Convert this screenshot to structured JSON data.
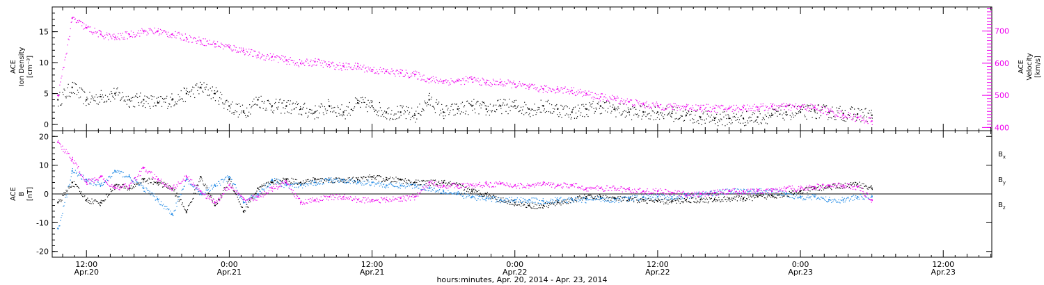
{
  "colors": {
    "black": "#000000",
    "magenta": "#ee00ee",
    "blue": "#1e88e5"
  },
  "x_ticks": [
    {
      "t": 0.5,
      "time": "12:00",
      "date": "Apr.20"
    },
    {
      "t": 1.0,
      "time": "0:00",
      "date": "Apr.21"
    },
    {
      "t": 1.5,
      "time": "12:00",
      "date": "Apr.21"
    },
    {
      "t": 2.0,
      "time": "0:00",
      "date": "Apr.22"
    },
    {
      "t": 2.5,
      "time": "12:00",
      "date": "Apr.22"
    },
    {
      "t": 3.0,
      "time": "0:00",
      "date": "Apr.23"
    },
    {
      "t": 3.5,
      "time": "12:00",
      "date": "Apr.23"
    }
  ],
  "x_title": "hours:minutes, Apr. 20, 2014 - Apr. 23, 2014",
  "chart_data": [
    {
      "type": "scatter",
      "panel": "top",
      "ylabel_left": [
        "ACE",
        "Ion Density",
        "[cm⁻³]"
      ],
      "ylabel_right": [
        "ACE",
        "Velocity",
        "[km/s]"
      ],
      "ylim_left": [
        -1,
        19
      ],
      "yticks_left": [
        0,
        5,
        10,
        15
      ],
      "ylim_right": [
        390,
        775
      ],
      "yticks_right": [
        400,
        500,
        600,
        700
      ],
      "x_range_days": [
        0.38,
        3.67
      ],
      "series": [
        {
          "axis": "left",
          "color": "#000000",
          "x": [
            0.4,
            0.45,
            0.5,
            0.55,
            0.6,
            0.65,
            0.7,
            0.75,
            0.8,
            0.85,
            0.9,
            0.95,
            1.0,
            1.05,
            1.1,
            1.15,
            1.2,
            1.25,
            1.3,
            1.35,
            1.4,
            1.45,
            1.5,
            1.55,
            1.6,
            1.65,
            1.7,
            1.75,
            1.8,
            1.85,
            1.9,
            1.95,
            2.0,
            2.05,
            2.1,
            2.15,
            2.2,
            2.25,
            2.3,
            2.35,
            2.4,
            2.45,
            2.5,
            2.55,
            2.6,
            2.65,
            2.7,
            2.75,
            2.8,
            2.85,
            2.9,
            2.95,
            3.0,
            3.05,
            3.1,
            3.15,
            3.2,
            3.25
          ],
          "values": [
            4,
            6,
            4,
            4.5,
            5,
            4,
            4,
            3.5,
            4,
            5,
            6,
            5,
            3,
            2,
            4,
            3,
            3,
            2.5,
            2,
            3,
            2,
            3.5,
            3,
            2,
            2,
            1.5,
            4,
            2,
            2.5,
            3,
            2.5,
            3,
            3,
            2.5,
            3,
            2.5,
            2,
            2.5,
            3,
            2.5,
            2,
            2,
            2,
            1.8,
            1.5,
            1.2,
            1,
            1,
            1,
            1.2,
            1.5,
            2,
            2,
            2.2,
            2,
            1.8,
            1.7,
            1.5
          ]
        },
        {
          "axis": "right",
          "color": "#ee00ee",
          "x": [
            0.4,
            0.45,
            0.5,
            0.55,
            0.6,
            0.65,
            0.7,
            0.75,
            0.8,
            0.85,
            0.9,
            0.95,
            1.0,
            1.05,
            1.1,
            1.15,
            1.2,
            1.25,
            1.3,
            1.35,
            1.4,
            1.45,
            1.5,
            1.55,
            1.6,
            1.65,
            1.7,
            1.75,
            1.8,
            1.85,
            1.9,
            1.95,
            2.0,
            2.05,
            2.1,
            2.15,
            2.2,
            2.25,
            2.3,
            2.35,
            2.4,
            2.45,
            2.5,
            2.55,
            2.6,
            2.65,
            2.7,
            2.75,
            2.8,
            2.85,
            2.9,
            2.95,
            3.0,
            3.05,
            3.1,
            3.15,
            3.2,
            3.25
          ],
          "values": [
            500,
            740,
            710,
            690,
            680,
            690,
            700,
            700,
            690,
            680,
            670,
            660,
            650,
            640,
            625,
            620,
            610,
            600,
            605,
            595,
            590,
            590,
            580,
            575,
            570,
            565,
            550,
            545,
            545,
            550,
            540,
            540,
            535,
            525,
            520,
            520,
            515,
            505,
            495,
            490,
            480,
            472,
            468,
            465,
            465,
            462,
            460,
            460,
            462,
            463,
            465,
            465,
            464,
            462,
            450,
            440,
            430,
            420
          ]
        }
      ]
    },
    {
      "type": "scatter",
      "panel": "bottom",
      "ylabel_left": [
        "ACE",
        "B",
        "[nT]"
      ],
      "ylim": [
        -22,
        22
      ],
      "yticks": [
        -20,
        -10,
        0,
        10,
        20
      ],
      "x_range_days": [
        0.38,
        3.67
      ],
      "series": [
        {
          "name": "Bx",
          "color": "#000000",
          "x": [
            0.4,
            0.45,
            0.5,
            0.55,
            0.6,
            0.65,
            0.7,
            0.75,
            0.8,
            0.85,
            0.9,
            0.95,
            1.0,
            1.05,
            1.1,
            1.15,
            1.2,
            1.25,
            1.3,
            1.35,
            1.4,
            1.45,
            1.5,
            1.55,
            1.6,
            1.65,
            1.7,
            1.75,
            1.8,
            1.85,
            1.9,
            1.95,
            2.0,
            2.05,
            2.1,
            2.15,
            2.2,
            2.25,
            2.3,
            2.35,
            2.4,
            2.45,
            2.5,
            2.55,
            2.6,
            2.65,
            2.7,
            2.75,
            2.8,
            2.85,
            2.9,
            2.95,
            3.0,
            3.05,
            3.1,
            3.15,
            3.2,
            3.25
          ],
          "values": [
            -3,
            4,
            -2,
            -3,
            3,
            2,
            5,
            4,
            2,
            -6,
            6,
            -4,
            5,
            -6,
            2,
            4,
            5,
            4,
            5,
            5,
            5,
            5,
            6,
            5,
            5,
            4,
            4,
            4,
            3,
            1,
            0,
            -2,
            -3,
            -4,
            -4,
            -3,
            -2,
            -1,
            -1,
            -1.5,
            -2,
            -2,
            -2.5,
            -2.5,
            -2,
            -2,
            -2,
            -1.5,
            -1.5,
            -1,
            -0.5,
            0,
            1,
            2,
            2.5,
            3,
            3.5,
            2
          ]
        },
        {
          "name": "By",
          "color": "#1e88e5",
          "x": [
            0.4,
            0.45,
            0.5,
            0.55,
            0.6,
            0.65,
            0.7,
            0.75,
            0.8,
            0.85,
            0.9,
            0.95,
            1.0,
            1.05,
            1.1,
            1.15,
            1.2,
            1.25,
            1.3,
            1.35,
            1.4,
            1.45,
            1.5,
            1.55,
            1.6,
            1.65,
            1.7,
            1.75,
            1.8,
            1.85,
            1.9,
            1.95,
            2.0,
            2.05,
            2.1,
            2.15,
            2.2,
            2.25,
            2.3,
            2.35,
            2.4,
            2.45,
            2.5,
            2.55,
            2.6,
            2.65,
            2.7,
            2.75,
            2.8,
            2.85,
            2.9,
            2.95,
            3.0,
            3.05,
            3.1,
            3.15,
            3.2,
            3.25
          ],
          "values": [
            -12,
            8,
            5,
            3,
            8,
            6,
            2,
            -2,
            -7,
            5,
            0,
            3,
            6,
            -3,
            0,
            5,
            3,
            3,
            4,
            5,
            5,
            4,
            4,
            3,
            3,
            3,
            2,
            1,
            0,
            -1,
            -1.5,
            -2,
            -2,
            -2,
            -2.5,
            -2,
            -2,
            -2,
            -1.5,
            -2,
            -1.5,
            -1,
            -1,
            -1,
            -0.5,
            0,
            0.5,
            1,
            1,
            1,
            1,
            0,
            -1,
            -1,
            -2,
            -2,
            -1,
            -1
          ]
        },
        {
          "name": "Bz",
          "color": "#ee00ee",
          "x": [
            0.4,
            0.45,
            0.5,
            0.55,
            0.6,
            0.65,
            0.7,
            0.75,
            0.8,
            0.85,
            0.9,
            0.95,
            1.0,
            1.05,
            1.1,
            1.15,
            1.2,
            1.25,
            1.3,
            1.35,
            1.4,
            1.45,
            1.5,
            1.55,
            1.6,
            1.65,
            1.7,
            1.75,
            1.8,
            1.85,
            1.9,
            1.95,
            2.0,
            2.05,
            2.1,
            2.15,
            2.2,
            2.25,
            2.3,
            2.35,
            2.4,
            2.45,
            2.5,
            2.55,
            2.6,
            2.65,
            2.7,
            2.75,
            2.8,
            2.85,
            2.9,
            2.95,
            3.0,
            3.05,
            3.1,
            3.15,
            3.2,
            3.25
          ],
          "values": [
            18,
            12,
            4,
            6,
            2,
            3,
            9,
            5,
            2,
            6,
            1,
            -3,
            3,
            -2,
            -1,
            2,
            4,
            -3,
            -2,
            -1,
            -1,
            -2,
            -2,
            -2,
            -1.5,
            -1,
            4,
            3,
            3,
            3,
            3.5,
            3.5,
            3,
            3,
            3.5,
            3,
            3,
            2,
            2,
            2,
            1.5,
            1,
            1,
            0.5,
            0,
            0,
            0.5,
            1,
            1,
            1,
            1,
            2,
            2,
            2.5,
            3,
            3,
            2.5,
            -2
          ]
        }
      ],
      "legend": [
        "B",
        "B",
        "B"
      ],
      "legend_subscripts": [
        "x",
        "y",
        "z"
      ]
    }
  ]
}
